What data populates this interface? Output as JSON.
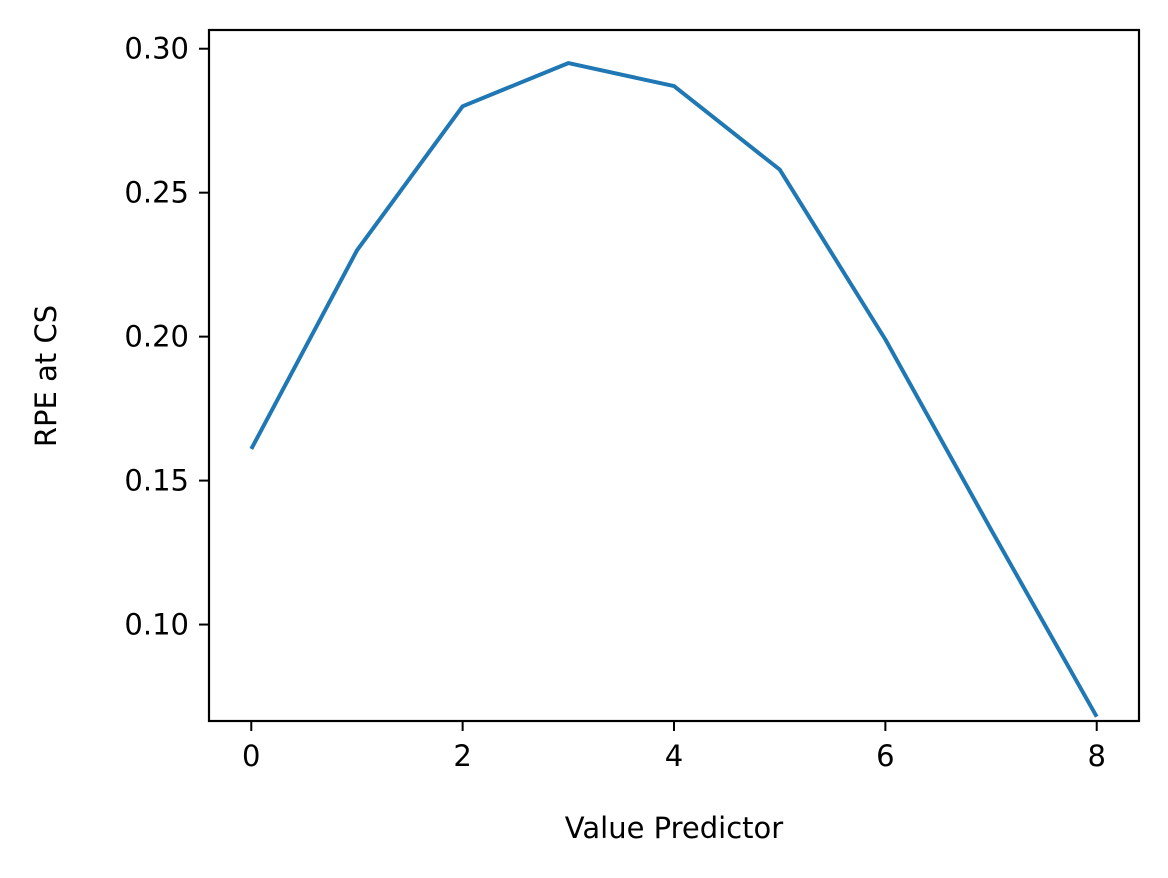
{
  "chart_data": {
    "type": "line",
    "title": "",
    "xlabel": "Value Predictor",
    "ylabel": "RPE at CS",
    "xlim": [
      -0.4,
      8.4
    ],
    "ylim": [
      0.0665,
      0.3065
    ],
    "xticks": [
      0,
      2,
      4,
      6,
      8
    ],
    "xtick_labels": [
      "0",
      "2",
      "4",
      "6",
      "8"
    ],
    "yticks": [
      0.1,
      0.15,
      0.2,
      0.25,
      0.3
    ],
    "ytick_labels": [
      "0.10",
      "0.15",
      "0.20",
      "0.25",
      "0.30"
    ],
    "grid": false,
    "legend": "none",
    "series": [
      {
        "color": "#1f77b4",
        "x": [
          0,
          1,
          2,
          3,
          4,
          5,
          6,
          7,
          8
        ],
        "y": [
          0.161,
          0.23,
          0.28,
          0.295,
          0.287,
          0.258,
          0.199,
          0.133,
          0.068
        ]
      }
    ]
  }
}
